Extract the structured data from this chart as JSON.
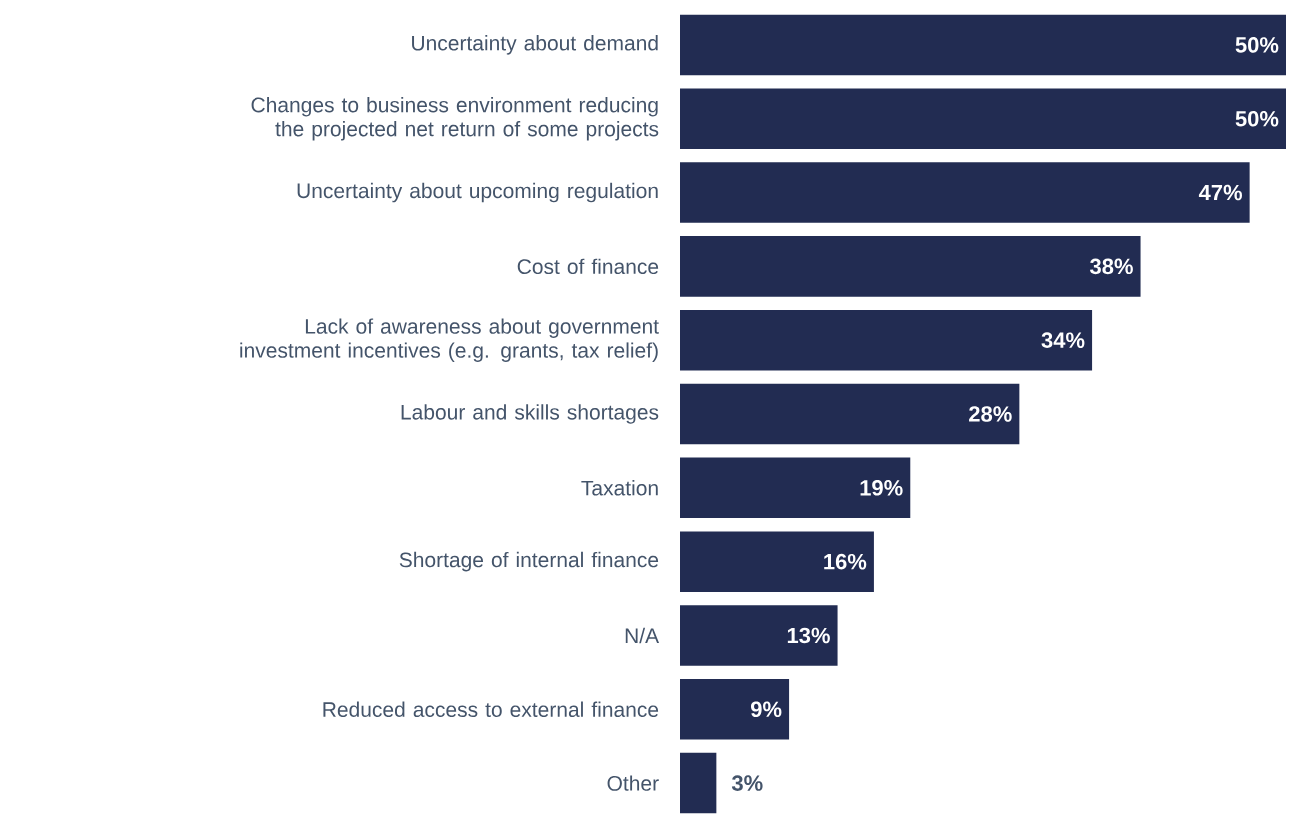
{
  "chart_data": {
    "type": "bar",
    "orientation": "horizontal",
    "color": "#222c52",
    "categories": [
      "Uncertainty about demand",
      "Changes to business environment reducing the projected net return of some projects",
      "Uncertainty about upcoming regulation",
      "Cost of finance",
      "Lack of awareness about government investment incentives (e.g. grants, tax relief)",
      "Labour and skills shortages",
      "Taxation",
      "Shortage of internal finance",
      "N/A",
      "Reduced access to external finance",
      "Other"
    ],
    "values": [
      50,
      50,
      47,
      38,
      34,
      28,
      19,
      16,
      13,
      9,
      3
    ],
    "value_labels": [
      "50%",
      "50%",
      "47%",
      "38%",
      "34%",
      "28%",
      "19%",
      "16%",
      "13%",
      "9%",
      "3%"
    ]
  }
}
